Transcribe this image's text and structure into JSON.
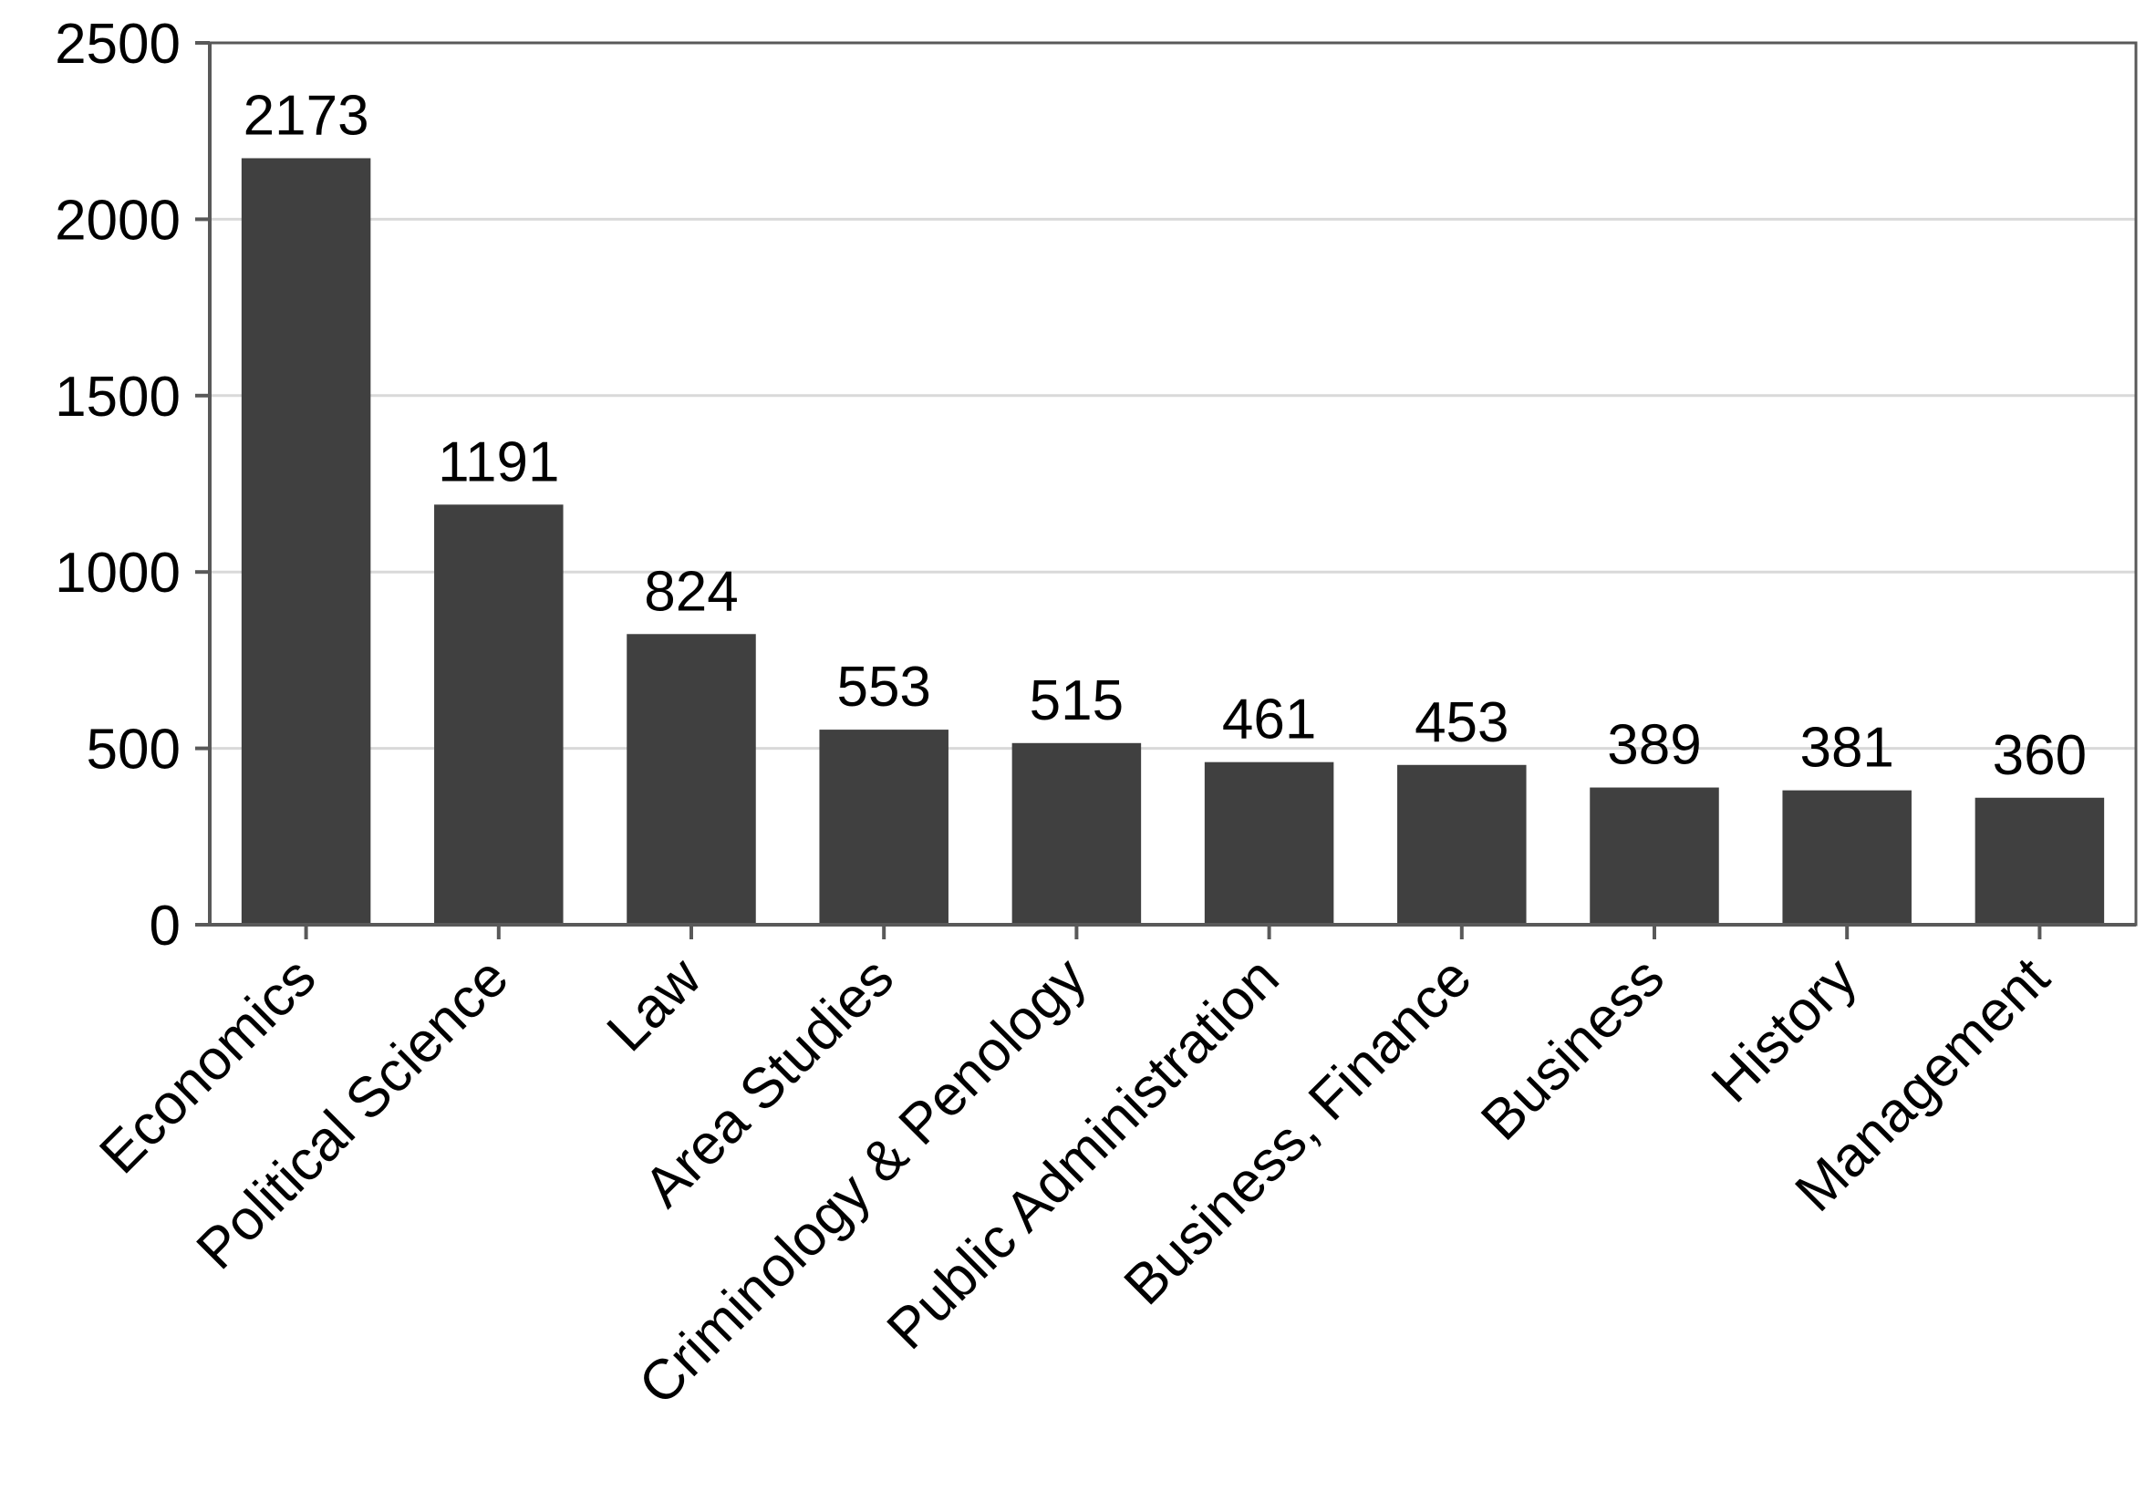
{
  "chart_data": {
    "type": "bar",
    "title": "",
    "xlabel": "",
    "ylabel": "",
    "categories": [
      "Economics",
      "Political Science",
      "Law",
      "Area Studies",
      "Criminology & Penology",
      "Public Administration",
      "Business, Finance",
      "Business",
      "History",
      "Management"
    ],
    "values": [
      2173,
      1191,
      824,
      553,
      515,
      461,
      453,
      389,
      381,
      360
    ],
    "ylim": [
      0,
      2500
    ],
    "yticks": [
      0,
      500,
      1000,
      1500,
      2000,
      2500
    ],
    "data_labels": true,
    "grid": "horizontal",
    "legend": "none",
    "bar_color": "#404040",
    "grid_color": "#d9d9d9",
    "axis_color": "#595959"
  }
}
